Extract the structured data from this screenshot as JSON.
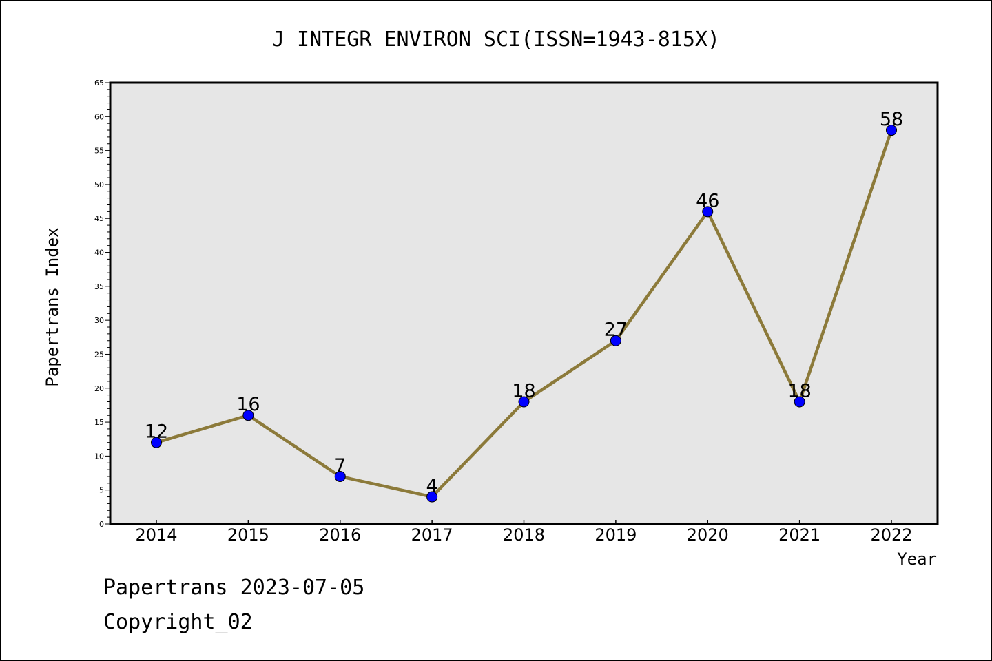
{
  "chart_data": {
    "type": "line",
    "title": "J INTEGR ENVIRON SCI(ISSN=1943-815X)",
    "xlabel": "Year",
    "ylabel": "Papertrans Index",
    "categories": [
      "2014",
      "2015",
      "2016",
      "2017",
      "2018",
      "2019",
      "2020",
      "2021",
      "2022"
    ],
    "series": [
      {
        "values": [
          12,
          16,
          7,
          4,
          18,
          27,
          46,
          18,
          58
        ]
      }
    ],
    "data_labels": [
      "12",
      "16",
      "7",
      "4",
      "18",
      "27",
      "46",
      "18",
      "58"
    ],
    "ylim": [
      0,
      65
    ],
    "yticks": [
      0,
      5,
      10,
      15,
      20,
      25,
      30,
      35,
      40,
      45,
      50,
      55,
      60,
      65
    ],
    "ytick_labels": [
      "0",
      "5",
      "10",
      "15",
      "20",
      "25",
      "30",
      "35",
      "40",
      "45",
      "50",
      "55",
      "60",
      "65"
    ],
    "grid": false,
    "legend": "none",
    "colors": {
      "line": "#8c7a3a",
      "marker": "#0000ff",
      "plot_background": "#e6e6e6"
    }
  },
  "footer": {
    "line1": "Papertrans 2023-07-05",
    "line2": "Copyright_02"
  }
}
